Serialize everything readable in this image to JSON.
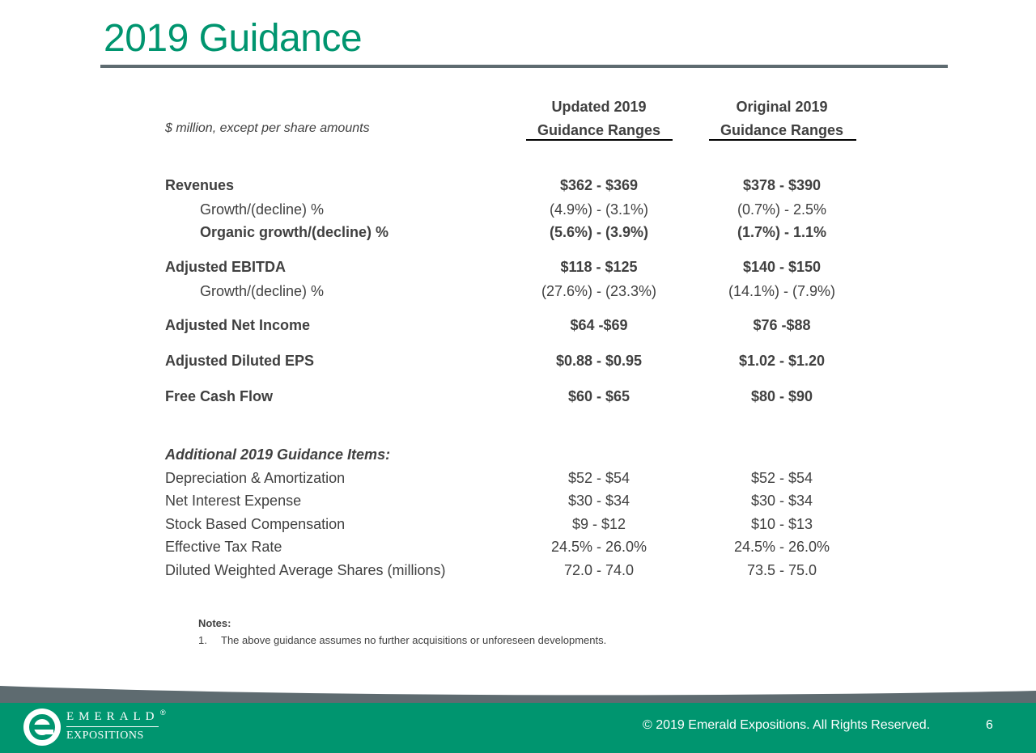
{
  "slide": {
    "title": "2019 Guidance",
    "page_number": "6",
    "copyright": "© 2019 Emerald Expositions. All Rights Reserved."
  },
  "table": {
    "units_note": "$ million, except per share amounts",
    "col1_header_line1": "Updated 2019",
    "col1_header_line2": "Guidance Ranges",
    "col2_header_line1": "Original 2019",
    "col2_header_line2": "Guidance Ranges",
    "rows": [
      {
        "label": "Revenues",
        "updated": "$362 - $369",
        "original": "$378 - $390"
      },
      {
        "label": "Growth/(decline) %",
        "updated": "(4.9%) - (3.1%)",
        "original": "(0.7%) - 2.5%"
      },
      {
        "label": "Organic growth/(decline) %",
        "updated": "(5.6%) - (3.9%)",
        "original": "(1.7%) - 1.1%"
      },
      {
        "label": "Adjusted EBITDA",
        "updated": "$118 - $125",
        "original": "$140 - $150"
      },
      {
        "label": "Growth/(decline) %",
        "updated": "(27.6%) - (23.3%)",
        "original": "(14.1%) - (7.9%)"
      },
      {
        "label": "Adjusted Net Income",
        "updated": "$64 -$69",
        "original": "$76 -$88"
      },
      {
        "label": "Adjusted Diluted EPS",
        "updated": "$0.88 - $0.95",
        "original": "$1.02 - $1.20"
      },
      {
        "label": "Free Cash Flow",
        "updated": "$60 - $65",
        "original": "$80 - $90"
      }
    ],
    "additional_header": "Additional 2019 Guidance Items:",
    "additional_rows": [
      {
        "label": "Depreciation & Amortization",
        "updated": "$52 - $54",
        "original": "$52 - $54"
      },
      {
        "label": "Net Interest Expense",
        "updated": "$30 - $34",
        "original": "$30 - $34"
      },
      {
        "label": "Stock Based Compensation",
        "updated": "$9 - $12",
        "original": "$10 - $13"
      },
      {
        "label": "Effective Tax Rate",
        "updated": "24.5% - 26.0%",
        "original": "24.5% - 26.0%"
      },
      {
        "label": "Diluted Weighted Average Shares (millions)",
        "updated": "72.0 - 74.0",
        "original": "73.5 - 75.0"
      }
    ]
  },
  "notes": {
    "heading": "Notes:",
    "items": [
      {
        "num": "1.",
        "text": "The above guidance assumes no further acquisitions or unforeseen developments."
      }
    ]
  },
  "logo": {
    "line1": "EMERALD",
    "line2": "EXPOSITIONS",
    "registered": "®"
  },
  "colors": {
    "brand_green": "#00956f",
    "footer_gray": "#5e6b70"
  }
}
